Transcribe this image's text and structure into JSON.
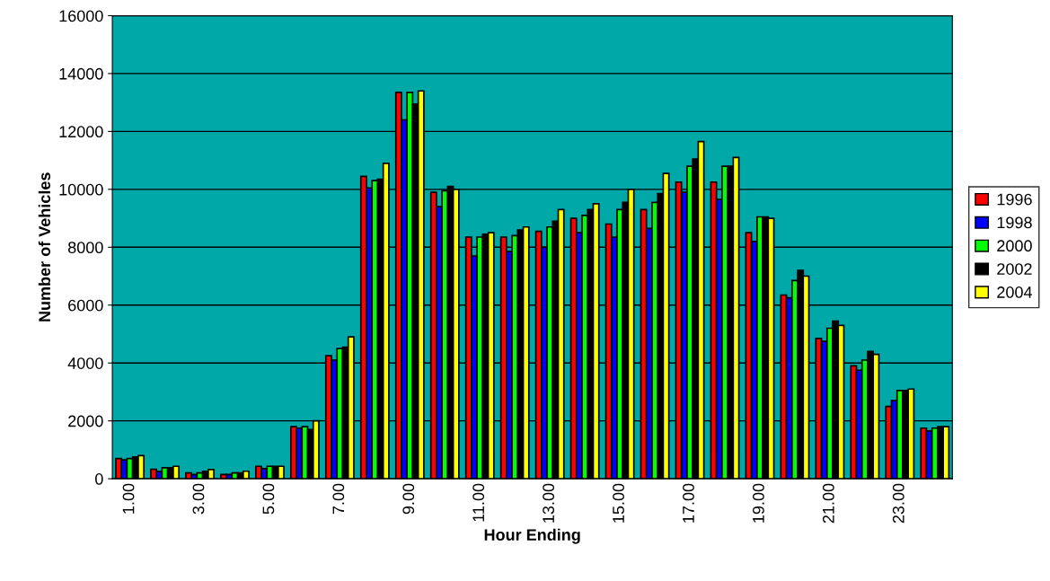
{
  "chart_data": {
    "type": "bar",
    "xlabel": "Hour Ending",
    "ylabel": "Number of Vehicles",
    "categories": [
      "1.00",
      null,
      "3.00",
      null,
      "5.00",
      null,
      "7.00",
      null,
      "9.00",
      null,
      "11.00",
      null,
      "13.00",
      null,
      "15.00",
      null,
      "17.00",
      null,
      "19.00",
      null,
      "21.00",
      null,
      "23.00",
      null
    ],
    "series": [
      {
        "name": "1996",
        "color": "#ff0000",
        "values": [
          700,
          330,
          200,
          150,
          430,
          1800,
          4250,
          10450,
          13350,
          9900,
          8350,
          8350,
          8550,
          9000,
          8800,
          9300,
          10250,
          10250,
          8500,
          6350,
          4850,
          3900,
          2500,
          1750
        ]
      },
      {
        "name": "1998",
        "color": "#0000ff",
        "values": [
          650,
          250,
          150,
          150,
          350,
          1750,
          4100,
          10050,
          12400,
          9400,
          7700,
          7850,
          8000,
          8500,
          8350,
          8650,
          9900,
          9650,
          8200,
          6250,
          4750,
          3750,
          2700,
          1650
        ]
      },
      {
        "name": "2000",
        "color": "#00ff00",
        "values": [
          700,
          380,
          200,
          200,
          430,
          1800,
          4500,
          10300,
          13350,
          9950,
          8350,
          8400,
          8700,
          9100,
          9300,
          9550,
          10800,
          10800,
          9050,
          6850,
          5200,
          4100,
          3050,
          1750
        ]
      },
      {
        "name": "2002",
        "color": "#000000",
        "values": [
          750,
          380,
          260,
          200,
          430,
          1700,
          4550,
          10350,
          12950,
          10100,
          8450,
          8600,
          8900,
          9300,
          9550,
          9850,
          11050,
          10800,
          9050,
          7200,
          5450,
          4400,
          3050,
          1800
        ]
      },
      {
        "name": "2004",
        "color": "#ffff00",
        "values": [
          800,
          430,
          320,
          260,
          430,
          2000,
          4900,
          10900,
          13400,
          10000,
          8500,
          8700,
          9300,
          9500,
          10000,
          10550,
          11650,
          11100,
          9000,
          7000,
          5300,
          4300,
          3100,
          1800
        ]
      }
    ],
    "ylim": [
      0,
      16000
    ],
    "yticks": [
      0,
      2000,
      4000,
      6000,
      8000,
      10000,
      12000,
      14000,
      16000
    ],
    "grid": "y",
    "legend": "right"
  }
}
